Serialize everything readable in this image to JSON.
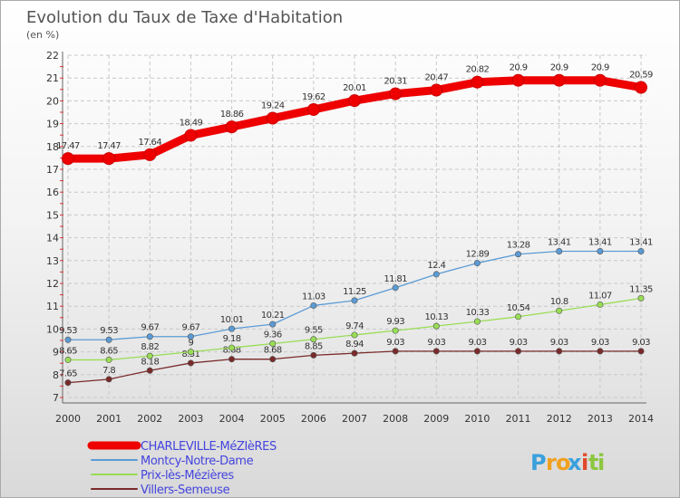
{
  "chart_data": {
    "type": "line",
    "title": "Evolution du Taux de Taxe d'Habitation",
    "unit_label": "(en %)",
    "x": [
      "2000",
      "2001",
      "2002",
      "2003",
      "2004",
      "2005",
      "2006",
      "2007",
      "2008",
      "2009",
      "2010",
      "2011",
      "2012",
      "2013",
      "2014"
    ],
    "ylim": [
      7,
      22
    ],
    "yticks": [
      "7",
      "8",
      "9",
      "10",
      "11",
      "12",
      "13",
      "14",
      "15",
      "16",
      "17",
      "18",
      "19",
      "20",
      "21",
      "22"
    ],
    "grid": true,
    "legend_position": "bottom-left",
    "series": [
      {
        "name": "CHARLEVILLE-MéZIèRES",
        "color": "#ee0000",
        "legend_color": "#4444dd",
        "values": [
          17.47,
          17.47,
          17.64,
          18.49,
          18.86,
          19.24,
          19.62,
          20.01,
          20.31,
          20.47,
          20.82,
          20.9,
          20.9,
          20.9,
          20.59
        ],
        "labels": [
          "17.47",
          "17.47",
          "17.64",
          "18.49",
          "18.86",
          "19.24",
          "19.62",
          "20.01",
          "20.31",
          "20.47",
          "20.82",
          "20.9",
          "20.9",
          "20.9",
          "20.59"
        ]
      },
      {
        "name": "Montcy-Notre-Dame",
        "color": "#5b9bd5",
        "legend_color": "#4444dd",
        "values": [
          9.53,
          9.53,
          9.67,
          9.67,
          10.01,
          10.21,
          11.03,
          11.25,
          11.81,
          12.4,
          12.89,
          13.28,
          13.41,
          13.41,
          13.41
        ],
        "labels": [
          "9.53",
          "9.53",
          "9.67",
          "9.67",
          "10.01",
          "10.21",
          "11.03",
          "11.25",
          "11.81",
          "12.4",
          "12.89",
          "13.28",
          "13.41",
          "13.41",
          "13.41"
        ]
      },
      {
        "name": "Prix-lès-Mézières",
        "color": "#99dd55",
        "legend_color": "#4444dd",
        "values": [
          8.65,
          8.65,
          8.82,
          9.0,
          9.18,
          9.36,
          9.55,
          9.74,
          9.93,
          10.13,
          10.33,
          10.54,
          10.8,
          11.07,
          11.35
        ],
        "labels": [
          "8.65",
          "8.65",
          "8.82",
          "9",
          "9.18",
          "9.36",
          "9.55",
          "9.74",
          "9.93",
          "10.13",
          "10.33",
          "10.54",
          "10.8",
          "11.07",
          "11.35"
        ]
      },
      {
        "name": "Villers-Semeuse",
        "color": "#7a2a2a",
        "legend_color": "#4444dd",
        "values": [
          7.65,
          7.8,
          8.18,
          8.51,
          8.68,
          8.68,
          8.85,
          8.94,
          9.03,
          9.03,
          9.03,
          9.03,
          9.03,
          9.03,
          9.03
        ],
        "labels": [
          "7.65",
          "7.8",
          "8.18",
          "8.51",
          "8.68",
          "8.68",
          "8.85",
          "8.94",
          "9.03",
          "9.03",
          "9.03",
          "9.03",
          "9.03",
          "9.03",
          "9.03"
        ]
      }
    ]
  },
  "brand": {
    "letters": [
      "P",
      "r",
      "o",
      "x",
      "i",
      "t",
      "i"
    ],
    "colors": [
      "#3aa0dc",
      "#f0a020",
      "#f0a020",
      "#3aa0dc",
      "#e04a2a",
      "#8cc63f",
      "#8cc63f"
    ]
  }
}
